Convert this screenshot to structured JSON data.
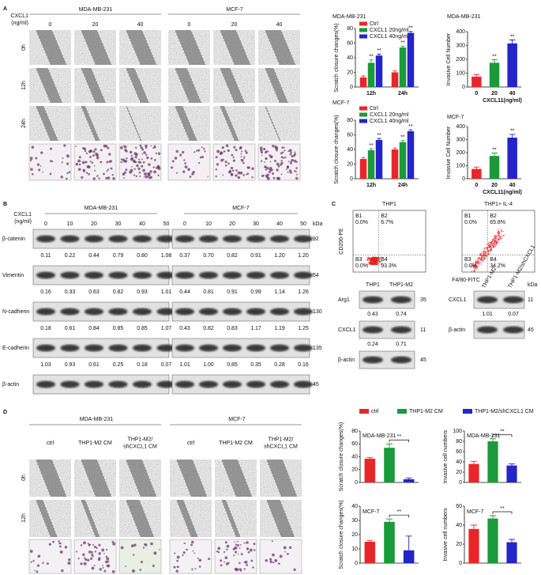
{
  "panel_labels": [
    "A",
    "B",
    "C",
    "D"
  ],
  "panel_a": {
    "treatment_label": [
      "CXCL1",
      "(ng/ml)"
    ],
    "cell_lines": [
      "MDA-MB-231",
      "MCF-7"
    ],
    "doses": [
      "0",
      "20",
      "40"
    ],
    "times": [
      "0h",
      "12h",
      "24h"
    ]
  },
  "panel_b": {
    "treatment_label": [
      "CXCL1",
      "(ng/ml)"
    ],
    "cell_lines": [
      "MDA-MB-231",
      "MCF-7"
    ],
    "doses": [
      "0",
      "10",
      "20",
      "30",
      "40",
      "50"
    ],
    "kda_label": "kDa",
    "rows": [
      {
        "protein": "β-catenin",
        "kda": "92",
        "mda": [
          "0.11",
          "0.22",
          "0.44",
          "0.79",
          "0.80",
          "1.08"
        ],
        "mcf": [
          "0.37",
          "0.70",
          "0.82",
          "0.91",
          "1.20",
          "1.20"
        ]
      },
      {
        "protein": "Vimentin",
        "kda": "54",
        "mda": [
          "0.16",
          "0.33",
          "0.63",
          "0.82",
          "0.93",
          "1.01"
        ],
        "mcf": [
          "0.44",
          "0.81",
          "0.91",
          "0.99",
          "1.14",
          "1.26"
        ]
      },
      {
        "protein": "N-cadherin",
        "kda": "130",
        "mda": [
          "0.18",
          "0.61",
          "0.84",
          "0.85",
          "0.85",
          "1.07"
        ],
        "mcf": [
          "0.43",
          "0.82",
          "0.83",
          "1.17",
          "1.19",
          "1.25"
        ]
      },
      {
        "protein": "E-cadherin",
        "kda": "135",
        "mda": [
          "1.03",
          "0.93",
          "0.61",
          "0.25",
          "0.18",
          "0.07"
        ],
        "mcf": [
          "1.01",
          "1.00",
          "0.85",
          "0.35",
          "0.28",
          "0.16"
        ]
      },
      {
        "protein": "β-actin",
        "kda": "45"
      }
    ]
  },
  "panel_c": {
    "flow": {
      "y_label": "CD206-PE",
      "x_label": "F4/80-FITC",
      "quadrants": [
        "B1",
        "B2",
        "B3",
        "B4"
      ],
      "plots": [
        {
          "title": "THP1",
          "percents": [
            "0.0%",
            "6.7%",
            "0.0%",
            "93.3%"
          ]
        },
        {
          "title": "THP1+ IL-4",
          "percents": [
            "0.0%",
            "65.8%",
            "0.0%",
            "34.2%"
          ]
        }
      ]
    },
    "blot_left": {
      "lanes": [
        "THP1",
        "THP1-M2"
      ],
      "rows": [
        {
          "protein": "Arg1",
          "values": [
            "0.43",
            "0.74"
          ],
          "kda": "35"
        },
        {
          "protein": "CXCL1",
          "values": [
            "0.24",
            "0.71"
          ],
          "kda": "11"
        },
        {
          "protein": "β-actin",
          "kda": "45"
        }
      ]
    },
    "blot_right": {
      "kda_label": "kDa",
      "lanes": [
        "THP1-M2",
        "THP1-M2/shCXCL1"
      ],
      "rows": [
        {
          "protein": "CXCL1",
          "values": [
            "1.01",
            "0.07"
          ],
          "kda": "11"
        },
        {
          "protein": "β-actin",
          "kda": "45"
        }
      ]
    }
  },
  "panel_d": {
    "cell_lines": [
      "MDA-MB-231",
      "MCF-7"
    ],
    "conditions": [
      [
        "ctrl"
      ],
      [
        "THP1-M2 CM"
      ],
      [
        "THP1-M2/",
        "shCXCL1 CM"
      ]
    ],
    "times": [
      "0h",
      "12h"
    ],
    "legend": [
      {
        "name": "ctrl",
        "color": "#e8262a"
      },
      {
        "name": "THP1-M2 CM",
        "color": "#1a9a3a"
      },
      {
        "name": "THP1-M2/shCXCL1 CM",
        "color": "#2424c8"
      }
    ]
  },
  "chart_data": [
    {
      "type": "bar",
      "title": "MDA-MB-231",
      "y_label": "Scratch closure changes(%)",
      "categories": [
        "12h",
        "24h"
      ],
      "series": [
        {
          "name": "Ctrl",
          "color": "#e8262a",
          "values": [
            13,
            20
          ],
          "errors": [
            2,
            2
          ]
        },
        {
          "name": "CXCL1 20ng/ml",
          "color": "#1a9a3a",
          "values": [
            33,
            54
          ],
          "errors": [
            4,
            2
          ]
        },
        {
          "name": "CXCL1 40ng/ml",
          "color": "#2424c8",
          "values": [
            43,
            74
          ],
          "errors": [
            2,
            2
          ]
        }
      ],
      "ylim": [
        0,
        80
      ],
      "yticks": [
        0,
        20,
        40,
        60,
        80
      ],
      "annotation": "**"
    },
    {
      "type": "bar",
      "title": "MDA-MB-231",
      "y_label": "Invasive Cell Number",
      "x_label": "CXCL11(ng/ml)",
      "categories": [
        "0",
        "20",
        "40"
      ],
      "values": [
        75,
        175,
        315
      ],
      "errors": [
        15,
        22,
        25
      ],
      "colors": [
        "#e8262a",
        "#1a9a3a",
        "#2424c8"
      ],
      "ylim": [
        0,
        400
      ],
      "yticks": [
        0,
        100,
        200,
        300,
        400
      ],
      "annotation": "**"
    },
    {
      "type": "bar",
      "title": "MCF-7",
      "y_label": "Scratch closure changes(%)",
      "categories": [
        "12h",
        "24h"
      ],
      "series": [
        {
          "name": "Ctrl",
          "color": "#e8262a",
          "values": [
            27,
            40
          ],
          "errors": [
            2,
            2
          ]
        },
        {
          "name": "CXCL1 20ng/ml",
          "color": "#1a9a3a",
          "values": [
            39,
            50
          ],
          "errors": [
            2,
            2
          ]
        },
        {
          "name": "CXCL1 40ng/ml",
          "color": "#2424c8",
          "values": [
            53,
            65
          ],
          "errors": [
            2,
            2
          ]
        }
      ],
      "ylim": [
        0,
        80
      ],
      "yticks": [
        0,
        20,
        40,
        60,
        80
      ],
      "annotation": "**"
    },
    {
      "type": "bar",
      "title": "MCF-7",
      "y_label": "Invasive Cell Number",
      "x_label": "CXCL11(ng/ml)",
      "categories": [
        "0",
        "20",
        "40"
      ],
      "values": [
        75,
        175,
        315
      ],
      "errors": [
        15,
        22,
        25
      ],
      "colors": [
        "#e8262a",
        "#1a9a3a",
        "#2424c8"
      ],
      "ylim": [
        0,
        400
      ],
      "yticks": [
        0,
        100,
        200,
        300,
        400
      ],
      "annotation": "**"
    },
    {
      "type": "bar",
      "title": "MDA-MB-231",
      "y_label": "Scratch closure changes(%)",
      "values": [
        37,
        54,
        5
      ],
      "errors": [
        2,
        6,
        2
      ],
      "ylim": [
        0,
        80
      ],
      "yticks": [
        0,
        20,
        40,
        60,
        80
      ],
      "annotation": "**"
    },
    {
      "type": "bar",
      "title": "MDA-MB-231",
      "y_label": "Invasive cell numbers",
      "values": [
        36,
        80,
        33
      ],
      "errors": [
        5,
        5,
        3
      ],
      "ylim": [
        0,
        100
      ],
      "yticks": [
        0,
        20,
        40,
        60,
        80,
        100
      ],
      "annotation": "**"
    },
    {
      "type": "bar",
      "title": "MCF-7",
      "y_label": "Scratch closure changes(%)",
      "values": [
        15,
        29,
        9
      ],
      "errors": [
        1,
        2,
        10
      ],
      "ylim": [
        0,
        40
      ],
      "yticks": [
        0,
        10,
        20,
        30,
        40
      ],
      "annotation": "**"
    },
    {
      "type": "bar",
      "title": "MCF-7",
      "y_label": "Invasive cell numbers",
      "values": [
        36,
        47,
        22
      ],
      "errors": [
        4,
        3,
        3
      ],
      "ylim": [
        0,
        60
      ],
      "yticks": [
        0,
        20,
        40,
        60
      ],
      "annotation": "**"
    }
  ]
}
